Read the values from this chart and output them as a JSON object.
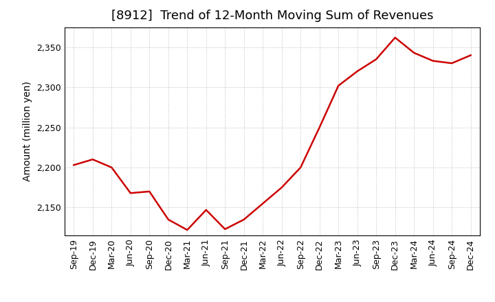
{
  "title": "[8912]  Trend of 12-Month Moving Sum of Revenues",
  "ylabel": "Amount (million yen)",
  "x_labels": [
    "Sep-19",
    "Dec-19",
    "Mar-20",
    "Jun-20",
    "Sep-20",
    "Dec-20",
    "Mar-21",
    "Jun-21",
    "Sep-21",
    "Dec-21",
    "Mar-22",
    "Jun-22",
    "Sep-22",
    "Dec-22",
    "Mar-23",
    "Jun-23",
    "Sep-23",
    "Dec-23",
    "Mar-24",
    "Jun-24",
    "Sep-24",
    "Dec-24"
  ],
  "y_values": [
    2203,
    2210,
    2200,
    2168,
    2170,
    2135,
    2122,
    2147,
    2123,
    2135,
    2155,
    2175,
    2200,
    2250,
    2302,
    2320,
    2335,
    2362,
    2343,
    2333,
    2330,
    2340
  ],
  "line_color": "#cc0000",
  "background_color": "#ffffff",
  "plot_bg_color": "#ffffff",
  "grid_color": "#bbbbbb",
  "ylim": [
    2115,
    2375
  ],
  "yticks": [
    2150,
    2200,
    2250,
    2300,
    2350
  ],
  "title_fontsize": 13,
  "axis_label_fontsize": 10,
  "tick_fontsize": 9
}
